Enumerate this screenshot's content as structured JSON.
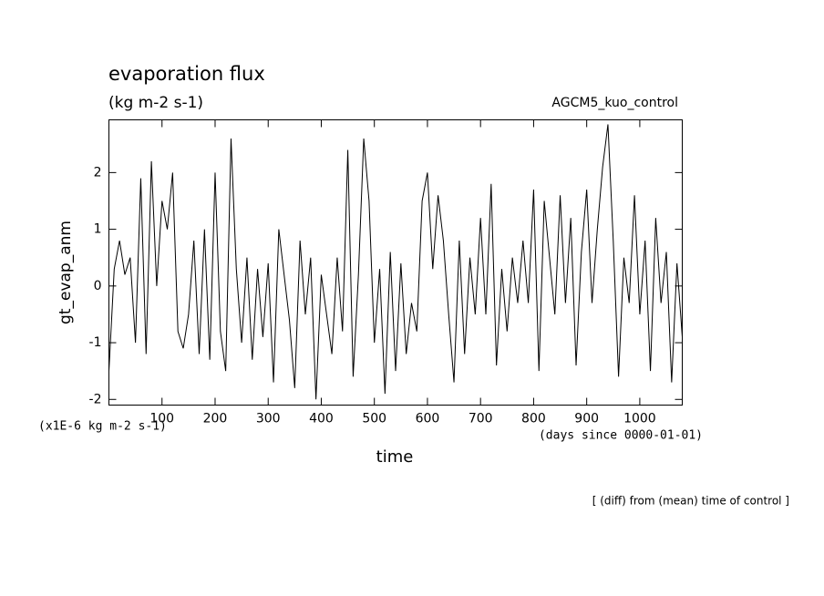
{
  "chart_data": {
    "type": "line",
    "title": "evaporation flux",
    "subtitle": "(kg m-2 s-1)",
    "annotation": "AGCM5_kuo_control",
    "y_label": "gt_evap_anm",
    "y_unit": "(x1E-6 kg m-2 s-1)",
    "x_unit": "(days since 0000-01-01)",
    "x_label": "time",
    "footer": "[ (diff) from (mean) time of control ]",
    "color": "#000000",
    "x": [
      0,
      10,
      20,
      30,
      40,
      50,
      60,
      70,
      80,
      90,
      100,
      110,
      120,
      130,
      140,
      150,
      160,
      170,
      180,
      190,
      200,
      210,
      220,
      230,
      240,
      250,
      260,
      270,
      280,
      290,
      300,
      310,
      320,
      330,
      340,
      350,
      360,
      370,
      380,
      390,
      400,
      410,
      420,
      430,
      440,
      450,
      460,
      470,
      480,
      490,
      500,
      510,
      520,
      530,
      540,
      550,
      560,
      570,
      580,
      590,
      600,
      610,
      620,
      630,
      640,
      650,
      660,
      670,
      680,
      690,
      700,
      710,
      720,
      730,
      740,
      750,
      760,
      770,
      780,
      790,
      800,
      810,
      820,
      830,
      840,
      850,
      860,
      870,
      880,
      890,
      900,
      910,
      920,
      930,
      940,
      950,
      960,
      970,
      980,
      990,
      1000,
      1010,
      1020,
      1030,
      1040,
      1050,
      1060,
      1070,
      1080
    ],
    "values": [
      -1.5,
      0.3,
      0.8,
      0.2,
      0.5,
      -1.0,
      1.9,
      -1.2,
      2.2,
      0.0,
      1.5,
      1.0,
      2.0,
      -0.8,
      -1.1,
      -0.5,
      0.8,
      -1.2,
      1.0,
      -1.3,
      2.0,
      -0.8,
      -1.5,
      2.6,
      0.3,
      -1.0,
      0.5,
      -1.3,
      0.3,
      -0.9,
      0.4,
      -1.7,
      1.0,
      0.2,
      -0.6,
      -1.8,
      0.8,
      -0.5,
      0.5,
      -2.0,
      0.2,
      -0.5,
      -1.2,
      0.5,
      -0.8,
      2.4,
      -1.6,
      0.2,
      2.6,
      1.5,
      -1.0,
      0.3,
      -1.9,
      0.6,
      -1.5,
      0.4,
      -1.2,
      -0.3,
      -0.8,
      1.5,
      2.0,
      0.3,
      1.6,
      0.8,
      -0.5,
      -1.7,
      0.8,
      -1.2,
      0.5,
      -0.5,
      1.2,
      -0.5,
      1.8,
      -1.4,
      0.3,
      -0.8,
      0.5,
      -0.3,
      0.8,
      -0.3,
      1.7,
      -1.5,
      1.5,
      0.5,
      -0.5,
      1.6,
      -0.3,
      1.2,
      -1.4,
      0.6,
      1.7,
      -0.3,
      1.0,
      2.1,
      2.85,
      0.8,
      -1.6,
      0.5,
      -0.3,
      1.6,
      -0.5,
      0.8,
      -1.5,
      1.2,
      -0.3,
      0.6,
      -1.7,
      0.4,
      -0.9
    ],
    "xlim": [
      0,
      1080
    ],
    "ylim": [
      -2.1,
      2.93
    ],
    "xticks": [
      100,
      200,
      300,
      400,
      500,
      600,
      700,
      800,
      900,
      1000
    ],
    "yticks": [
      -2,
      -1,
      0,
      1,
      2
    ]
  }
}
